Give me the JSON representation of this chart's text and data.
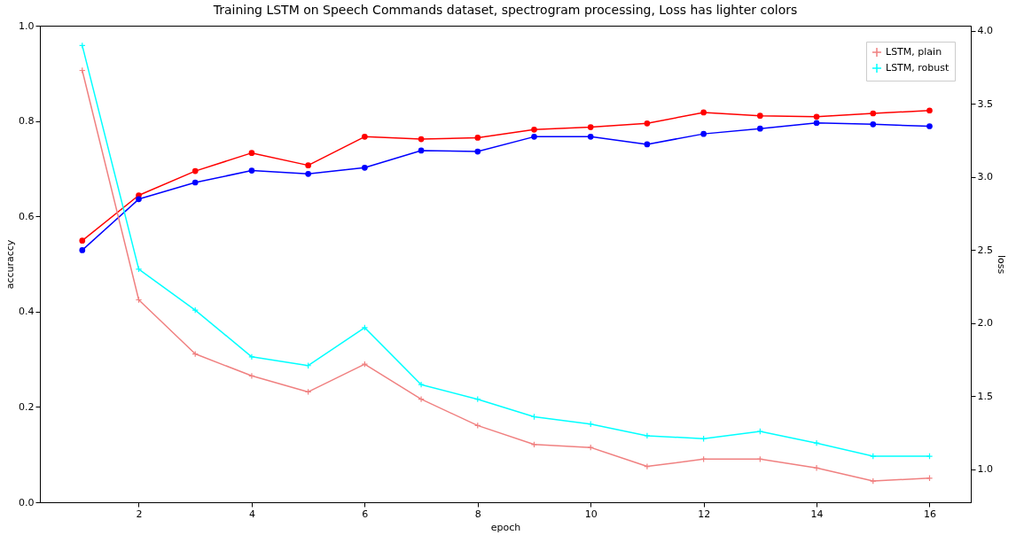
{
  "chart_data": {
    "type": "line",
    "title": "Training LSTM on Speech Commands dataset, spectrogram processing, Loss has lighter colors",
    "xlabel": "epoch",
    "ylabel": "accuraccy",
    "y2label": "loss",
    "x": [
      1,
      2,
      3,
      4,
      5,
      6,
      7,
      8,
      9,
      10,
      11,
      12,
      13,
      14,
      15,
      16
    ],
    "series": [
      {
        "color": "#ff0000",
        "marker": "circle",
        "values": [
          0.549,
          0.644,
          0.695,
          0.733,
          0.707,
          0.767,
          0.762,
          0.765,
          0.782,
          0.787,
          0.795,
          0.818,
          0.811,
          0.809,
          0.816,
          0.822
        ]
      },
      {
        "color": "#0000ff",
        "marker": "circle",
        "values": [
          0.529,
          0.636,
          0.671,
          0.696,
          0.689,
          0.702,
          0.738,
          0.736,
          0.767,
          0.767,
          0.751,
          0.773,
          0.784,
          0.796,
          0.793,
          0.789
        ]
      },
      {
        "name": "LSTM, plain",
        "color": "#f08080",
        "marker": "cross",
        "axis": "y2",
        "values": [
          3.73,
          2.16,
          1.79,
          1.64,
          1.53,
          1.72,
          1.48,
          1.3,
          1.17,
          1.15,
          1.02,
          1.07,
          1.07,
          1.01,
          0.92,
          0.94
        ]
      },
      {
        "name": "LSTM, robust",
        "color": "#00ffff",
        "marker": "cross",
        "axis": "y2",
        "values": [
          3.9,
          2.37,
          2.09,
          1.77,
          1.71,
          1.97,
          1.58,
          1.48,
          1.36,
          1.31,
          1.23,
          1.21,
          1.26,
          1.18,
          1.09,
          1.09
        ]
      }
    ],
    "xlim": [
      0.25,
      16.73
    ],
    "xticks": [
      2,
      4,
      6,
      8,
      10,
      12,
      14,
      16
    ],
    "ylim": [
      0,
      1.0
    ],
    "yticks": [
      {
        "value": 0,
        "label": "0.0"
      },
      {
        "value": 0.2,
        "label": "0.2"
      },
      {
        "value": 0.4,
        "label": "0.4"
      },
      {
        "value": 0.6,
        "label": "0.6"
      },
      {
        "value": 0.8,
        "label": "0.8"
      },
      {
        "value": 1.0,
        "label": "1.0"
      }
    ],
    "y2lim": [
      0.775,
      4.036
    ],
    "y2ticks": [
      {
        "value": 1,
        "label": "1.0"
      },
      {
        "value": 1.5,
        "label": "1.5"
      },
      {
        "value": 2,
        "label": "2.0"
      },
      {
        "value": 2.5,
        "label": "2.5"
      },
      {
        "value": 3,
        "label": "3.0"
      },
      {
        "value": 3.5,
        "label": "3.5"
      },
      {
        "value": 4,
        "label": "4.0"
      }
    ],
    "legend": "top right",
    "grid": false
  }
}
